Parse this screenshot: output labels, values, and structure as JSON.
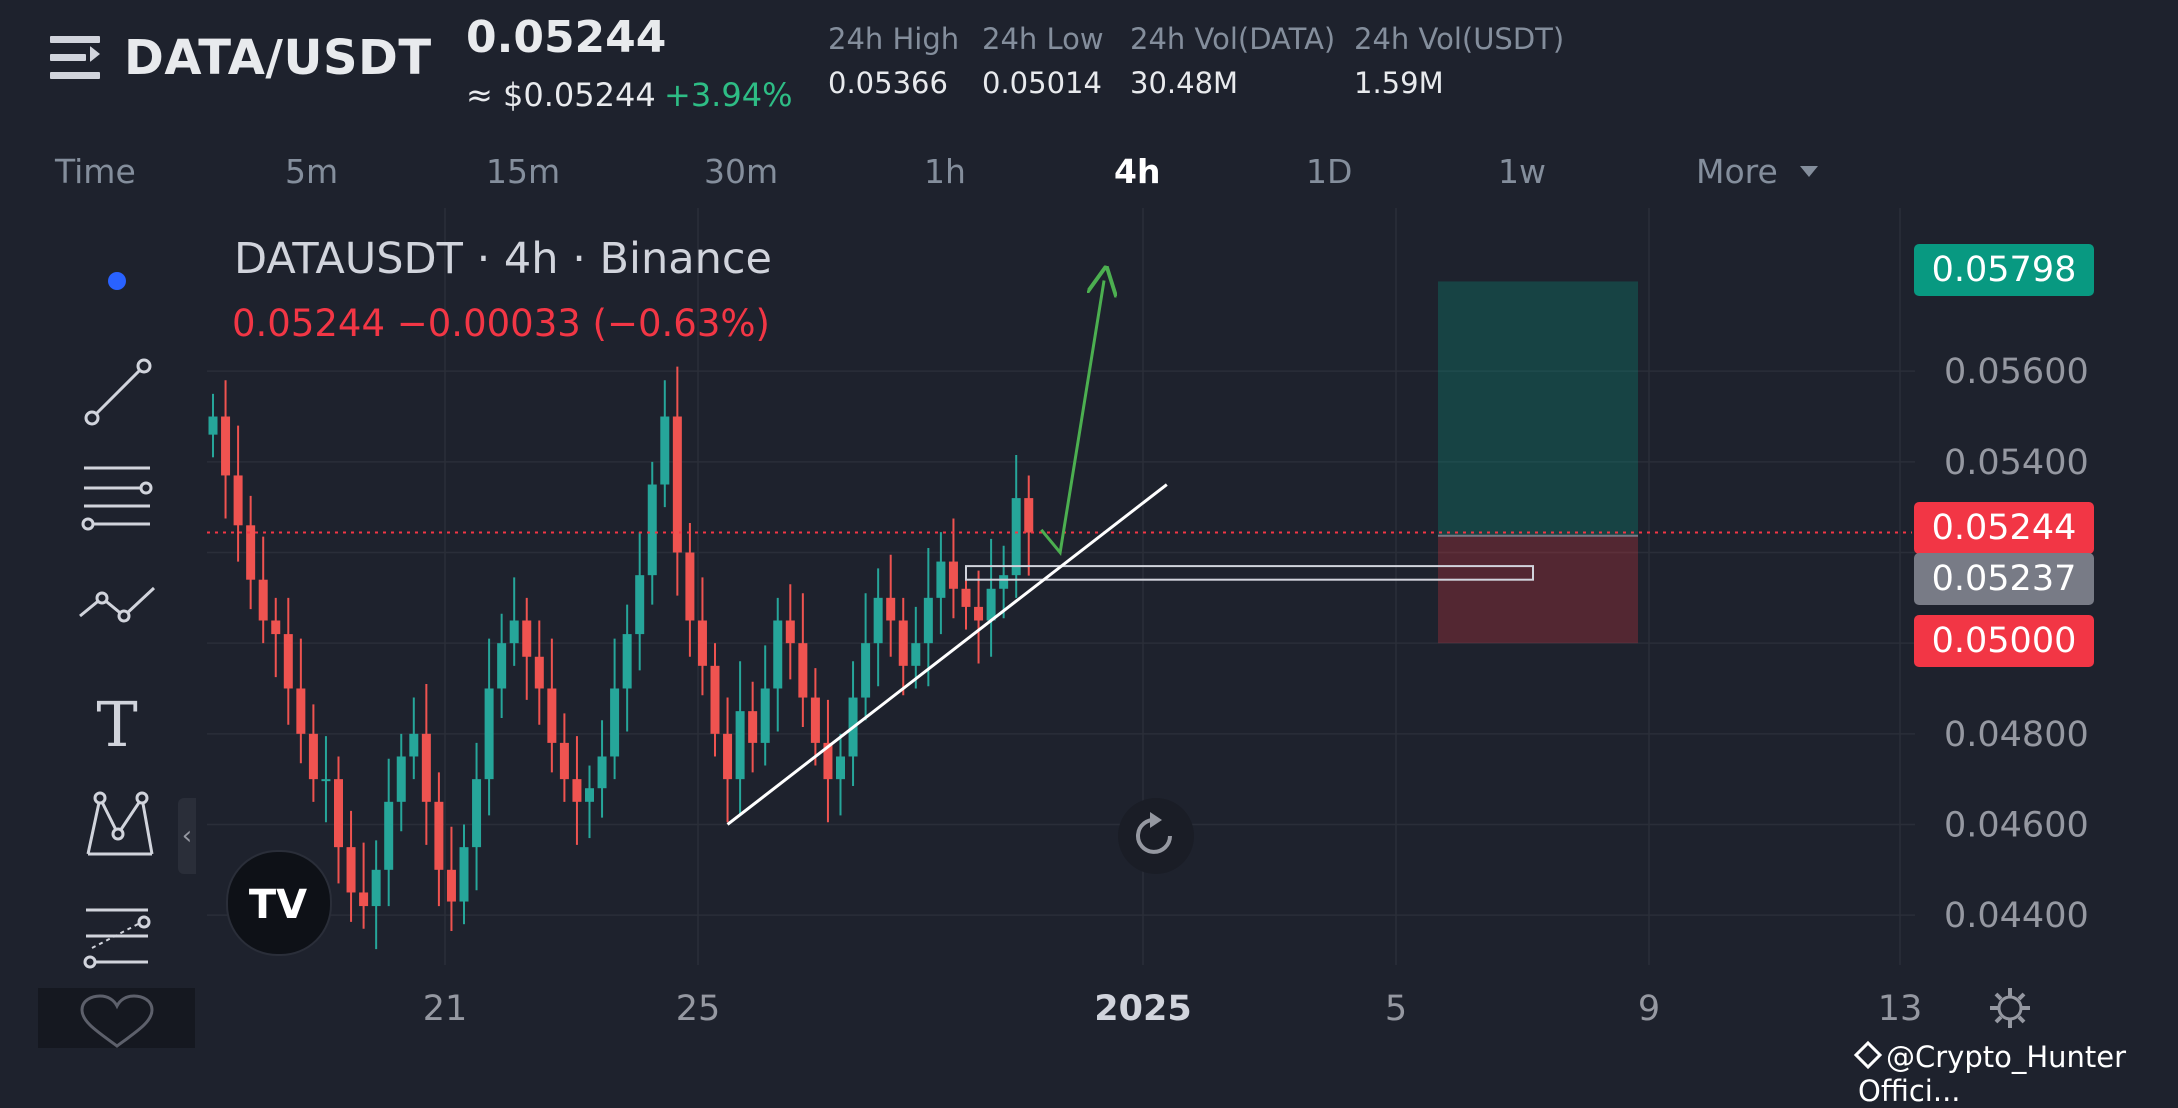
{
  "header": {
    "pair": "DATA/USDT",
    "last_price": "0.05244",
    "usd_price": "≈ $0.05244",
    "change_pct": "+3.94%",
    "stats": [
      {
        "label": "24h High",
        "value": "0.05366"
      },
      {
        "label": "24h Low",
        "value": "0.05014"
      },
      {
        "label": "24h Vol(DATA)",
        "value": "30.48M"
      },
      {
        "label": "24h Vol(USDT)",
        "value": "1.59M"
      }
    ]
  },
  "timeframes": {
    "items": [
      {
        "label": "Time"
      },
      {
        "label": "5m"
      },
      {
        "label": "15m"
      },
      {
        "label": "30m"
      },
      {
        "label": "1h"
      },
      {
        "label": "4h"
      },
      {
        "label": "1D"
      },
      {
        "label": "1w"
      },
      {
        "label": "More"
      }
    ],
    "active": "4h"
  },
  "legend": {
    "title": "DATAUSDT · 4h · Binance",
    "values": "0.05244  −0.00033 (−0.63%)"
  },
  "price_labels": {
    "target": "0.05798",
    "current": "0.05244",
    "entry": "0.05237",
    "stop": "0.05000"
  },
  "watermark": "@Crypto_Hunter Offici...",
  "colors": {
    "background": "#1e222d",
    "up": "#26a69a",
    "down": "#ef5350",
    "target_label": "#089981",
    "stop_label": "#f23645",
    "entry_label": "#787b86",
    "current_price": "#f23645",
    "projection_arrow": "#4caf50"
  },
  "chart_data": {
    "type": "candlestick",
    "title": "DATAUSDT · 4h · Binance",
    "exchange": "Binance",
    "interval": "4h",
    "y_ticks": [
      0.044,
      0.046,
      0.048,
      0.054,
      0.056
    ],
    "y_tick_labels": [
      "0.04400",
      "0.04600",
      "0.04800",
      "0.05400",
      "0.05600"
    ],
    "ylim": [
      0.0429,
      0.0596
    ],
    "x_ticks": [
      "21",
      "25",
      "2025",
      "5",
      "9",
      "13"
    ],
    "y_axis_side": "right",
    "grid": true,
    "close_series": [
      0.055,
      0.0537,
      0.0526,
      0.0514,
      0.0505,
      0.0502,
      0.049,
      0.048,
      0.047,
      0.047,
      0.0455,
      0.0445,
      0.0442,
      0.045,
      0.0465,
      0.0475,
      0.048,
      0.0465,
      0.045,
      0.0443,
      0.0455,
      0.047,
      0.049,
      0.05,
      0.0505,
      0.0497,
      0.049,
      0.0478,
      0.047,
      0.0465,
      0.0468,
      0.0475,
      0.049,
      0.0502,
      0.0515,
      0.0535,
      0.055,
      0.052,
      0.0505,
      0.0495,
      0.048,
      0.047,
      0.0485,
      0.0478,
      0.049,
      0.0505,
      0.05,
      0.0488,
      0.0478,
      0.047,
      0.0475,
      0.0488,
      0.05,
      0.051,
      0.0505,
      0.0495,
      0.05,
      0.051,
      0.0518,
      0.0512,
      0.0508,
      0.0505,
      0.0512,
      0.0515,
      0.0532,
      0.05244
    ],
    "last_price": 0.05244,
    "position": {
      "entry": 0.05237,
      "stop": 0.05,
      "target": 0.05798
    },
    "trendline": {
      "from": {
        "x_index": 41,
        "y": 0.046
      },
      "to": {
        "x_index": 76,
        "y": 0.0535
      }
    },
    "resistance_zone": {
      "top": 0.0517,
      "bottom": 0.0514
    },
    "projection": [
      {
        "x_index": 66,
        "y": 0.0525
      },
      {
        "x_index": 67.5,
        "y": 0.052
      },
      {
        "x_index": 71,
        "y": 0.058
      }
    ]
  }
}
